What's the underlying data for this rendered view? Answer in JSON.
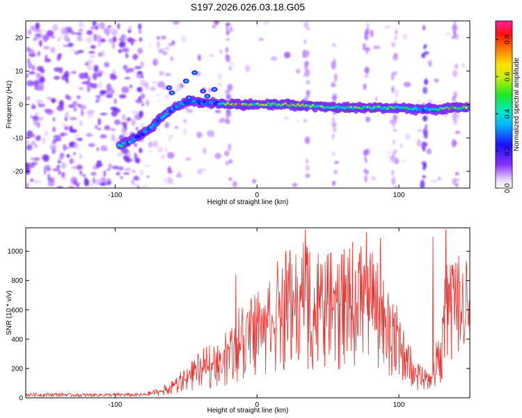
{
  "title": "S197.2026.026.03.18.G05",
  "chart_data": [
    {
      "type": "heatmap",
      "title": "S197.2026.026.03.18.G05",
      "xlabel": "Height of straight line (km)",
      "ylabel": "Frequency (Hz)",
      "xlim": [
        -163,
        150
      ],
      "ylim": [
        -25,
        25
      ],
      "xticks": [
        -100,
        0,
        100
      ],
      "xtick_labels": [
        "-100",
        "0",
        "100"
      ],
      "yticks": [
        -20,
        -10,
        0,
        10,
        20
      ],
      "ytick_labels": [
        "-20",
        "-10",
        "0",
        "10",
        "20"
      ],
      "colorbar": {
        "label": "Normalized spectral amplitude",
        "range": [
          0.0,
          0.9
        ],
        "ticks": [
          0.0,
          0.2,
          0.4,
          0.6,
          0.8
        ],
        "tick_labels": [
          "0.0",
          "0.2",
          "0.4",
          "0.6",
          "0.8"
        ]
      },
      "ridge": {
        "x": [
          -97,
          -85,
          -75,
          -65,
          -55,
          -45,
          -35,
          -25,
          -15,
          -5,
          0,
          20,
          40,
          60,
          80,
          100,
          120,
          140,
          148
        ],
        "freq": [
          -12.5,
          -10,
          -7,
          -3,
          0,
          1,
          0.5,
          0.3,
          0,
          0,
          0,
          0,
          -0.5,
          -1,
          -1,
          -1,
          -1.5,
          -1,
          -1
        ],
        "amplitude": [
          0.5,
          0.3,
          0.35,
          0.4,
          0.35,
          0.3,
          0.3,
          0.4,
          0.85,
          0.7,
          0.65,
          0.7,
          0.6,
          0.55,
          0.6,
          0.55,
          0.4,
          0.8,
          0.7
        ]
      }
    },
    {
      "type": "line",
      "xlabel": "Height of straight line (km)",
      "ylabel": "SNR (10 * v/v)",
      "xlim": [
        -163,
        150
      ],
      "ylim": [
        0,
        1160
      ],
      "xticks": [
        -100,
        0,
        100
      ],
      "xtick_labels": [
        "-100",
        "0",
        "100"
      ],
      "yticks": [
        0,
        200,
        400,
        600,
        800,
        1000
      ],
      "ytick_labels": [
        "0",
        "200",
        "400",
        "600",
        "800",
        "1000"
      ],
      "series": [
        {
          "name": "SNR",
          "color": "#e8302c",
          "x": [
            -163,
            -140,
            -120,
            -100,
            -80,
            -70,
            -60,
            -50,
            -40,
            -30,
            -20,
            -15,
            -10,
            -5,
            0,
            5,
            10,
            15,
            20,
            25,
            30,
            35,
            40,
            45,
            50,
            55,
            60,
            65,
            70,
            75,
            80,
            85,
            90,
            95,
            100,
            105,
            110,
            115,
            120,
            125,
            130,
            135,
            140,
            145,
            150
          ],
          "y": [
            20,
            22,
            18,
            20,
            20,
            40,
            80,
            150,
            220,
            280,
            330,
            400,
            480,
            530,
            550,
            580,
            620,
            680,
            700,
            720,
            740,
            760,
            720,
            700,
            680,
            700,
            720,
            740,
            760,
            780,
            700,
            650,
            560,
            520,
            420,
            300,
            220,
            160,
            140,
            200,
            450,
            700,
            720,
            680,
            620
          ],
          "peaks": [
            {
              "x": 34,
              "y": 1150
            },
            {
              "x": 77,
              "y": 1130
            },
            {
              "x": 87,
              "y": 1090
            },
            {
              "x": 133,
              "y": 1150
            },
            {
              "x": 124,
              "y": 1100
            },
            {
              "x": -15,
              "y": 840
            },
            {
              "x": 20,
              "y": 960
            }
          ]
        }
      ]
    }
  ]
}
